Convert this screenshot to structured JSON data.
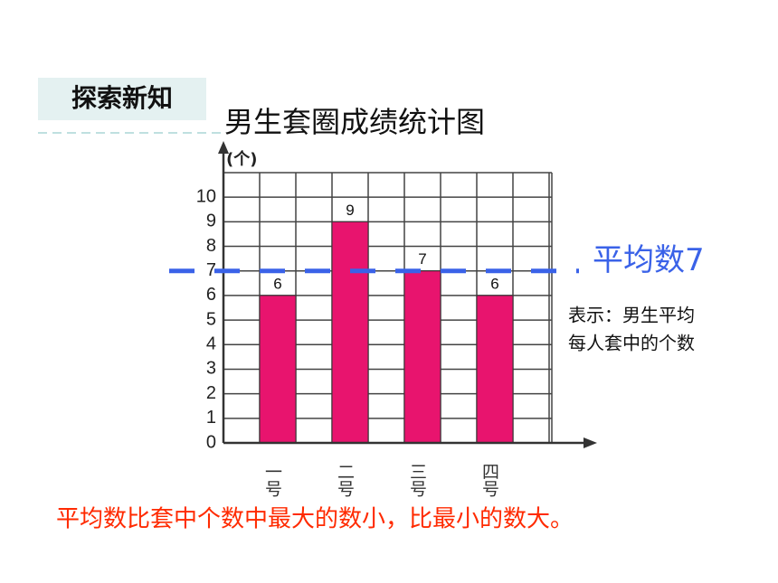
{
  "header": {
    "tag": "探索新知"
  },
  "chart_data": {
    "type": "bar",
    "title": "男生套圈成绩统计图",
    "y_label": "(个)",
    "categories": [
      "一号",
      "二号",
      "三号",
      "四号"
    ],
    "values": [
      6,
      9,
      7,
      6
    ],
    "color": "#e8146e",
    "ylim": [
      0,
      11
    ],
    "yticks": [
      0,
      1,
      2,
      3,
      4,
      5,
      6,
      7,
      8,
      9,
      10
    ],
    "grid": true,
    "mean": 7,
    "mean_label": "平均数7",
    "mean_color": "#3a62e8",
    "mean_note": [
      "表示：男生平均",
      "每人套中的个数"
    ]
  },
  "conclusion": "平均数比套中个数中最大的数小，比最小的数大。"
}
